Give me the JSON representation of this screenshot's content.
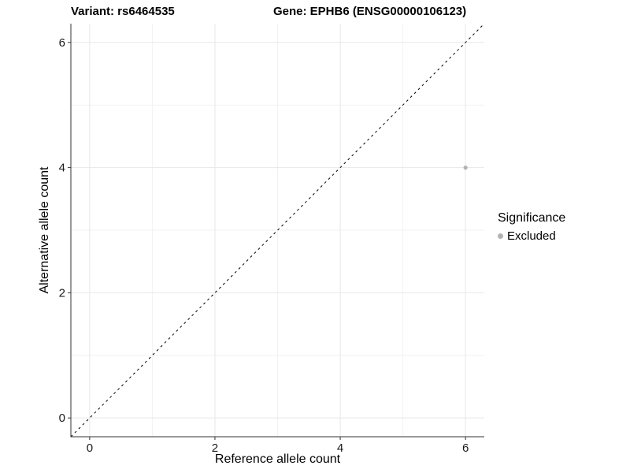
{
  "chart_data": {
    "type": "scatter",
    "title_left": "Variant: rs6464535",
    "title_right": "Gene: EPHB6 (ENSG00000106123)",
    "xlabel": "Reference allele count",
    "ylabel": "Alternative allele count",
    "xlim": [
      -0.3,
      6.3
    ],
    "ylim": [
      -0.3,
      6.3
    ],
    "x_ticks": [
      0,
      2,
      4,
      6
    ],
    "y_ticks": [
      0,
      2,
      4,
      6
    ],
    "x_minor_ticks": [
      1,
      3,
      5
    ],
    "y_minor_ticks": [
      1,
      3,
      5
    ],
    "grid": true,
    "identity_line": {
      "style": "dashed",
      "from": [
        -0.3,
        -0.3
      ],
      "to": [
        6.3,
        6.3
      ]
    },
    "series": [
      {
        "name": "Excluded",
        "points": [
          {
            "x": 6,
            "y": 4
          }
        ]
      }
    ],
    "legend": {
      "title": "Significance",
      "position": "right",
      "entries": [
        {
          "label": "Excluded"
        }
      ]
    }
  },
  "colors": {
    "background": "#ffffff",
    "title_text": "#000000",
    "axis_line": "#333333",
    "tick_mark": "#333333",
    "tick_label": "#1a1a1a",
    "grid_major": "#e7e7e7",
    "grid_minor": "#f2f2f2",
    "identity_line": "#000000",
    "excluded_point": "#b3b3b3"
  }
}
